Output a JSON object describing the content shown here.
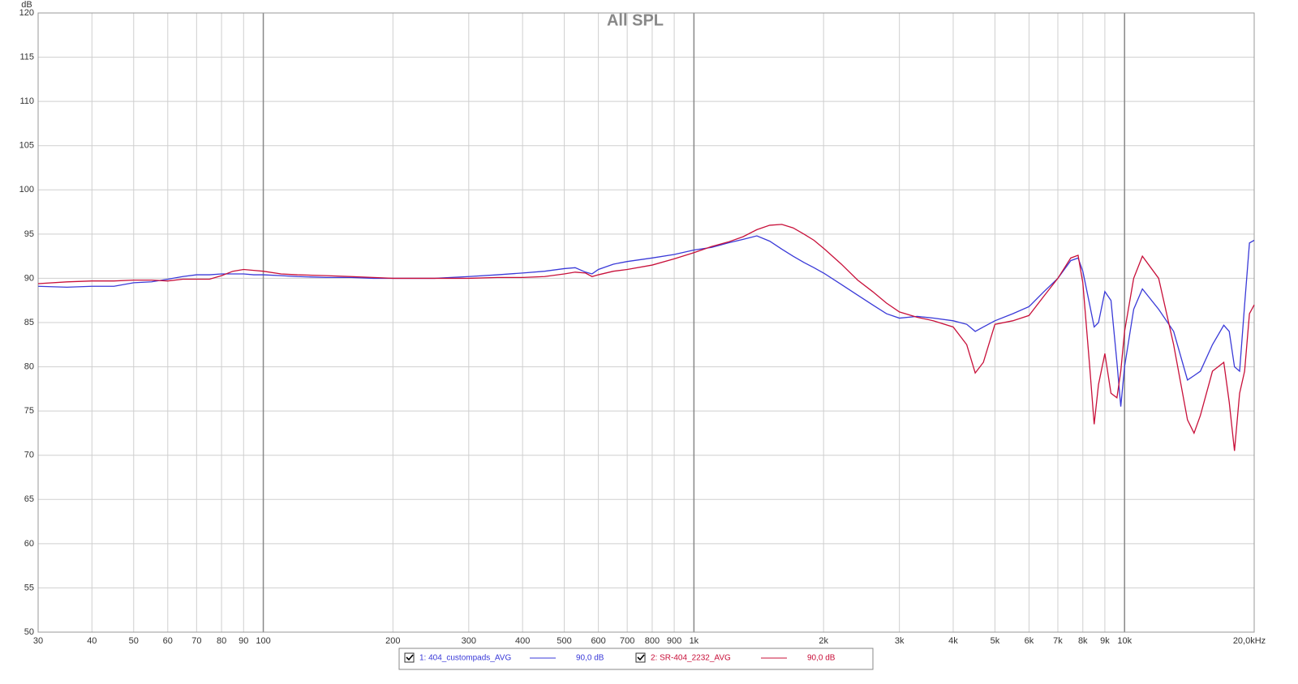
{
  "chart_data": {
    "type": "line",
    "title": "All SPL",
    "y_label": "dB",
    "x_scale": "log",
    "grid": true,
    "xlim": [
      30,
      20000
    ],
    "ylim": [
      50,
      120
    ],
    "xticks": [
      30,
      40,
      50,
      60,
      70,
      80,
      90,
      100,
      200,
      300,
      400,
      500,
      600,
      700,
      800,
      900,
      {
        "value": 1000,
        "label": "1k"
      },
      {
        "value": 2000,
        "label": "2k"
      },
      {
        "value": 3000,
        "label": "3k"
      },
      {
        "value": 4000,
        "label": "4k"
      },
      {
        "value": 5000,
        "label": "5k"
      },
      {
        "value": 6000,
        "label": "6k"
      },
      {
        "value": 7000,
        "label": "7k"
      },
      {
        "value": 8000,
        "label": "8k"
      },
      {
        "value": 9000,
        "label": "9k"
      },
      {
        "value": 10000,
        "label": "10k"
      },
      {
        "value": 20000,
        "label": "20,0kHz"
      }
    ],
    "yticks": [
      50,
      55,
      60,
      65,
      70,
      75,
      80,
      85,
      90,
      95,
      100,
      105,
      110,
      115,
      120
    ],
    "x": [
      30,
      35,
      40,
      45,
      50,
      55,
      60,
      65,
      70,
      75,
      80,
      85,
      90,
      95,
      100,
      110,
      120,
      140,
      160,
      180,
      200,
      250,
      300,
      350,
      400,
      450,
      500,
      530,
      560,
      580,
      600,
      650,
      700,
      800,
      900,
      1000,
      1100,
      1200,
      1300,
      1400,
      1500,
      1600,
      1700,
      1800,
      1900,
      2000,
      2200,
      2400,
      2600,
      2800,
      3000,
      3300,
      3600,
      4000,
      4300,
      4500,
      4700,
      5000,
      5500,
      6000,
      6500,
      7000,
      7500,
      7800,
      8000,
      8300,
      8500,
      8700,
      9000,
      9300,
      9600,
      9800,
      10000,
      10500,
      11000,
      12000,
      13000,
      14000,
      14500,
      15000,
      16000,
      17000,
      17500,
      18000,
      18500,
      19000,
      19500,
      20000
    ],
    "series": [
      {
        "name": "1: 404_custompads_AVG",
        "legend_value": "90,0 dB",
        "color": "#3a3ad8",
        "values": [
          89.1,
          89.0,
          89.1,
          89.1,
          89.5,
          89.6,
          89.9,
          90.2,
          90.4,
          90.4,
          90.5,
          90.5,
          90.5,
          90.4,
          90.4,
          90.3,
          90.2,
          90.1,
          90.1,
          90.0,
          90.0,
          90.0,
          90.2,
          90.4,
          90.6,
          90.8,
          91.1,
          91.2,
          90.7,
          90.5,
          91.0,
          91.6,
          91.9,
          92.3,
          92.7,
          93.2,
          93.5,
          94.0,
          94.4,
          94.8,
          94.2,
          93.3,
          92.5,
          91.8,
          91.2,
          90.6,
          89.3,
          88.1,
          87.0,
          86.0,
          85.5,
          85.7,
          85.5,
          85.2,
          84.8,
          84.0,
          84.5,
          85.2,
          86.0,
          86.8,
          88.5,
          90.0,
          92.0,
          92.3,
          90.8,
          87.0,
          84.5,
          85.0,
          88.5,
          87.5,
          80.5,
          75.5,
          80.0,
          86.5,
          88.8,
          86.5,
          84.0,
          78.5,
          79.0,
          79.5,
          82.5,
          84.7,
          84.0,
          80.0,
          79.5,
          87.0,
          94.0,
          94.3
        ]
      },
      {
        "name": "2: SR-404_2232_AVG",
        "legend_value": "90,0 dB",
        "color": "#c8103a",
        "values": [
          89.4,
          89.6,
          89.7,
          89.7,
          89.8,
          89.8,
          89.7,
          89.9,
          89.9,
          89.9,
          90.3,
          90.8,
          91.0,
          90.9,
          90.8,
          90.5,
          90.4,
          90.3,
          90.2,
          90.1,
          90.0,
          90.0,
          90.0,
          90.1,
          90.1,
          90.2,
          90.5,
          90.7,
          90.6,
          90.2,
          90.4,
          90.8,
          91.0,
          91.5,
          92.2,
          92.9,
          93.6,
          94.1,
          94.7,
          95.5,
          96.0,
          96.1,
          95.7,
          95.0,
          94.3,
          93.4,
          91.6,
          89.8,
          88.5,
          87.2,
          86.2,
          85.6,
          85.2,
          84.5,
          82.5,
          79.3,
          80.5,
          84.8,
          85.2,
          85.8,
          88.0,
          90.0,
          92.3,
          92.6,
          89.5,
          80.0,
          73.5,
          78.0,
          81.5,
          77.0,
          76.5,
          79.5,
          84.0,
          90.0,
          92.5,
          90.0,
          82.5,
          74.0,
          72.5,
          74.5,
          79.5,
          80.5,
          76.0,
          70.5,
          77.0,
          79.5,
          86.0,
          87.0
        ]
      }
    ]
  }
}
